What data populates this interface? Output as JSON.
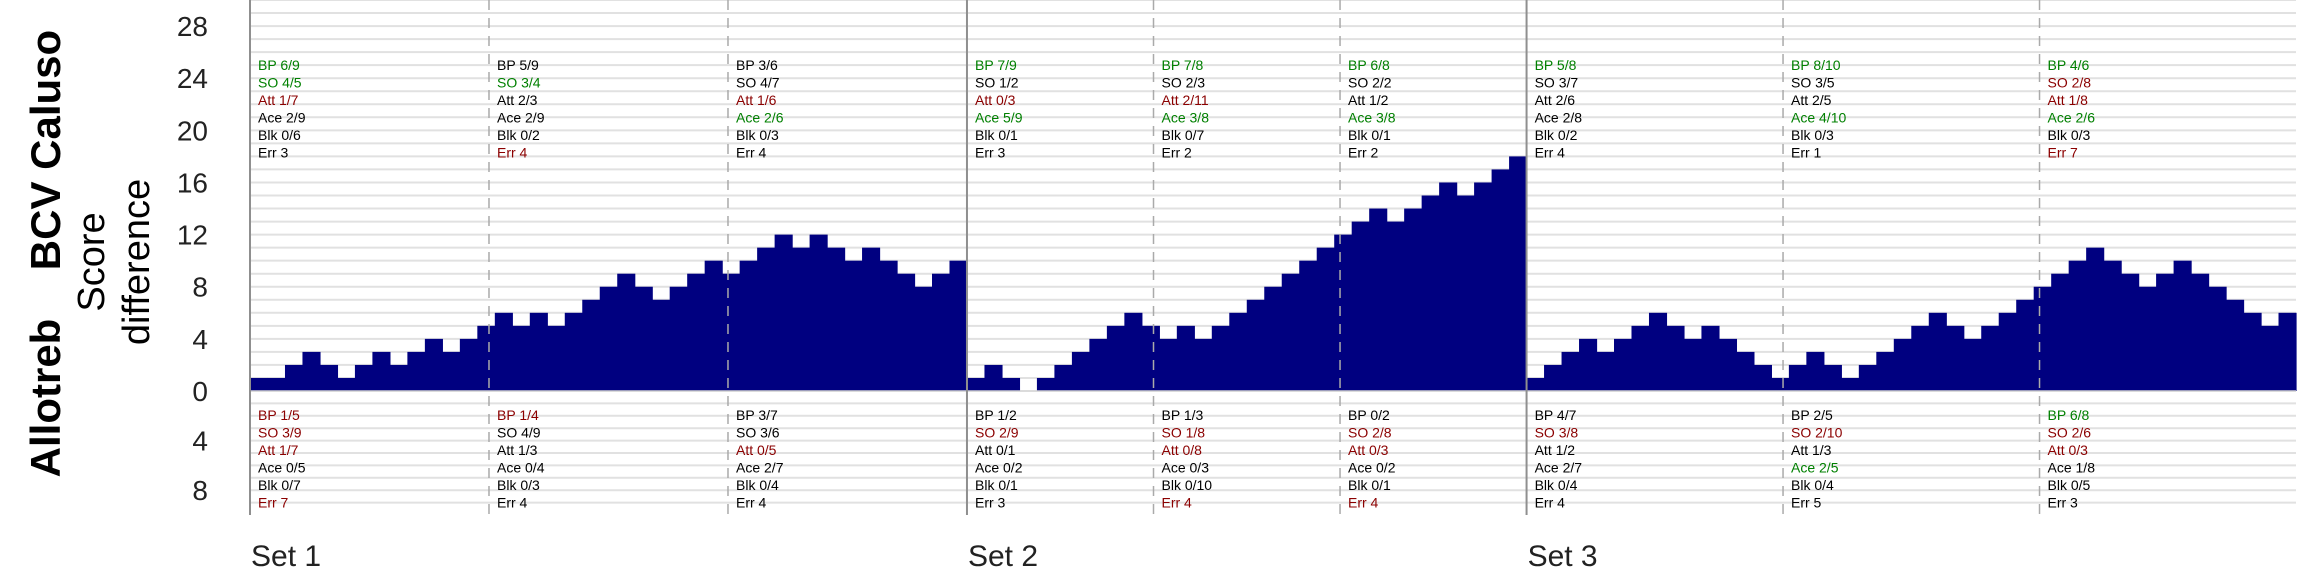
{
  "chart_data": {
    "type": "bar",
    "teams": {
      "top": "BCV Caluso",
      "bottom": "Allotreb"
    },
    "ylabel": [
      "Score",
      "difference"
    ],
    "top_ticks": [
      0,
      4,
      8,
      12,
      16,
      20,
      24,
      28
    ],
    "bottom_ticks": [
      0,
      4,
      8
    ],
    "ylim_top": 30,
    "ylim_bottom": 10,
    "bar_color": "#000080",
    "grid": true,
    "colors": {
      "good": "#008000",
      "bad": "#8b0000",
      "neutral": "#000000"
    },
    "sets": [
      {
        "label": "Set 1",
        "values": [
          1,
          1,
          2,
          3,
          2,
          1,
          2,
          3,
          2,
          3,
          4,
          3,
          4,
          5,
          6,
          5,
          6,
          5,
          6,
          7,
          8,
          9,
          8,
          7,
          8,
          9,
          10,
          9,
          10,
          11,
          12,
          11,
          12,
          11,
          10,
          11,
          10,
          9,
          8,
          9,
          10
        ]
      },
      {
        "label": "Set 2",
        "values": [
          1,
          2,
          1,
          0,
          1,
          2,
          3,
          4,
          5,
          6,
          5,
          4,
          5,
          4,
          5,
          6,
          7,
          8,
          9,
          10,
          11,
          12,
          13,
          14,
          13,
          14,
          15,
          16,
          15,
          16,
          17,
          18
        ]
      },
      {
        "label": "Set 3",
        "values": [
          1,
          2,
          3,
          4,
          3,
          4,
          5,
          6,
          5,
          4,
          5,
          4,
          3,
          2,
          1,
          2,
          3,
          2,
          1,
          2,
          3,
          4,
          5,
          6,
          5,
          4,
          5,
          6,
          7,
          8,
          9,
          10,
          11,
          10,
          9,
          8,
          9,
          10,
          9,
          8,
          7,
          6,
          5,
          6
        ]
      }
    ],
    "stats_top": [
      {
        "set": 0,
        "segment": 0,
        "lines": [
          {
            "t": "BP 6/9",
            "c": "good"
          },
          {
            "t": "SO 4/5",
            "c": "good"
          },
          {
            "t": "Att 1/7",
            "c": "bad"
          },
          {
            "t": "Ace 2/9",
            "c": "neutral"
          },
          {
            "t": "Blk 0/6",
            "c": "neutral"
          },
          {
            "t": "Err 3",
            "c": "neutral"
          }
        ]
      },
      {
        "set": 0,
        "segment": 1,
        "lines": [
          {
            "t": "BP 5/9",
            "c": "neutral"
          },
          {
            "t": "SO 3/4",
            "c": "good"
          },
          {
            "t": "Att 2/3",
            "c": "neutral"
          },
          {
            "t": "Ace 2/9",
            "c": "neutral"
          },
          {
            "t": "Blk 0/2",
            "c": "neutral"
          },
          {
            "t": "Err 4",
            "c": "bad"
          }
        ]
      },
      {
        "set": 0,
        "segment": 2,
        "lines": [
          {
            "t": "BP 3/6",
            "c": "neutral"
          },
          {
            "t": "SO 4/7",
            "c": "neutral"
          },
          {
            "t": "Att 1/6",
            "c": "bad"
          },
          {
            "t": "Ace 2/6",
            "c": "good"
          },
          {
            "t": "Blk 0/3",
            "c": "neutral"
          },
          {
            "t": "Err 4",
            "c": "neutral"
          }
        ]
      },
      {
        "set": 1,
        "segment": 0,
        "lines": [
          {
            "t": "BP 7/9",
            "c": "good"
          },
          {
            "t": "SO 1/2",
            "c": "neutral"
          },
          {
            "t": "Att 0/3",
            "c": "bad"
          },
          {
            "t": "Ace 5/9",
            "c": "good"
          },
          {
            "t": "Blk 0/1",
            "c": "neutral"
          },
          {
            "t": "Err 3",
            "c": "neutral"
          }
        ]
      },
      {
        "set": 1,
        "segment": 1,
        "lines": [
          {
            "t": "BP 7/8",
            "c": "good"
          },
          {
            "t": "SO 2/3",
            "c": "neutral"
          },
          {
            "t": "Att 2/11",
            "c": "bad"
          },
          {
            "t": "Ace 3/8",
            "c": "good"
          },
          {
            "t": "Blk 0/7",
            "c": "neutral"
          },
          {
            "t": "Err 2",
            "c": "neutral"
          }
        ]
      },
      {
        "set": 1,
        "segment": 2,
        "lines": [
          {
            "t": "BP 6/8",
            "c": "good"
          },
          {
            "t": "SO 2/2",
            "c": "neutral"
          },
          {
            "t": "Att 1/2",
            "c": "neutral"
          },
          {
            "t": "Ace 3/8",
            "c": "good"
          },
          {
            "t": "Blk 0/1",
            "c": "neutral"
          },
          {
            "t": "Err 2",
            "c": "neutral"
          }
        ]
      },
      {
        "set": 2,
        "segment": 0,
        "lines": [
          {
            "t": "BP 5/8",
            "c": "good"
          },
          {
            "t": "SO 3/7",
            "c": "neutral"
          },
          {
            "t": "Att 2/6",
            "c": "neutral"
          },
          {
            "t": "Ace 2/8",
            "c": "neutral"
          },
          {
            "t": "Blk 0/2",
            "c": "neutral"
          },
          {
            "t": "Err 4",
            "c": "neutral"
          }
        ]
      },
      {
        "set": 2,
        "segment": 1,
        "lines": [
          {
            "t": "BP 8/10",
            "c": "good"
          },
          {
            "t": "SO 3/5",
            "c": "neutral"
          },
          {
            "t": "Att 2/5",
            "c": "neutral"
          },
          {
            "t": "Ace 4/10",
            "c": "good"
          },
          {
            "t": "Blk 0/3",
            "c": "neutral"
          },
          {
            "t": "Err 1",
            "c": "neutral"
          }
        ]
      },
      {
        "set": 2,
        "segment": 2,
        "lines": [
          {
            "t": "BP 4/6",
            "c": "good"
          },
          {
            "t": "SO 2/8",
            "c": "bad"
          },
          {
            "t": "Att 1/8",
            "c": "bad"
          },
          {
            "t": "Ace 2/6",
            "c": "good"
          },
          {
            "t": "Blk 0/3",
            "c": "neutral"
          },
          {
            "t": "Err 7",
            "c": "bad"
          }
        ]
      }
    ],
    "stats_bottom": [
      {
        "set": 0,
        "segment": 0,
        "lines": [
          {
            "t": "BP 1/5",
            "c": "bad"
          },
          {
            "t": "SO 3/9",
            "c": "bad"
          },
          {
            "t": "Att 1/7",
            "c": "bad"
          },
          {
            "t": "Ace 0/5",
            "c": "neutral"
          },
          {
            "t": "Blk 0/7",
            "c": "neutral"
          },
          {
            "t": "Err 7",
            "c": "bad"
          }
        ]
      },
      {
        "set": 0,
        "segment": 1,
        "lines": [
          {
            "t": "BP 1/4",
            "c": "bad"
          },
          {
            "t": "SO 4/9",
            "c": "neutral"
          },
          {
            "t": "Att 1/3",
            "c": "neutral"
          },
          {
            "t": "Ace 0/4",
            "c": "neutral"
          },
          {
            "t": "Blk 0/3",
            "c": "neutral"
          },
          {
            "t": "Err 4",
            "c": "neutral"
          }
        ]
      },
      {
        "set": 0,
        "segment": 2,
        "lines": [
          {
            "t": "BP 3/7",
            "c": "neutral"
          },
          {
            "t": "SO 3/6",
            "c": "neutral"
          },
          {
            "t": "Att 0/5",
            "c": "bad"
          },
          {
            "t": "Ace 2/7",
            "c": "neutral"
          },
          {
            "t": "Blk 0/4",
            "c": "neutral"
          },
          {
            "t": "Err 4",
            "c": "neutral"
          }
        ]
      },
      {
        "set": 1,
        "segment": 0,
        "lines": [
          {
            "t": "BP 1/2",
            "c": "neutral"
          },
          {
            "t": "SO 2/9",
            "c": "bad"
          },
          {
            "t": "Att 0/1",
            "c": "neutral"
          },
          {
            "t": "Ace 0/2",
            "c": "neutral"
          },
          {
            "t": "Blk 0/1",
            "c": "neutral"
          },
          {
            "t": "Err 3",
            "c": "neutral"
          }
        ]
      },
      {
        "set": 1,
        "segment": 1,
        "lines": [
          {
            "t": "BP 1/3",
            "c": "neutral"
          },
          {
            "t": "SO 1/8",
            "c": "bad"
          },
          {
            "t": "Att 0/8",
            "c": "bad"
          },
          {
            "t": "Ace 0/3",
            "c": "neutral"
          },
          {
            "t": "Blk 0/10",
            "c": "neutral"
          },
          {
            "t": "Err 4",
            "c": "bad"
          }
        ]
      },
      {
        "set": 1,
        "segment": 2,
        "lines": [
          {
            "t": "BP 0/2",
            "c": "neutral"
          },
          {
            "t": "SO 2/8",
            "c": "bad"
          },
          {
            "t": "Att 0/3",
            "c": "bad"
          },
          {
            "t": "Ace 0/2",
            "c": "neutral"
          },
          {
            "t": "Blk 0/1",
            "c": "neutral"
          },
          {
            "t": "Err 4",
            "c": "bad"
          }
        ]
      },
      {
        "set": 2,
        "segment": 0,
        "lines": [
          {
            "t": "BP 4/7",
            "c": "neutral"
          },
          {
            "t": "SO 3/8",
            "c": "bad"
          },
          {
            "t": "Att 1/2",
            "c": "neutral"
          },
          {
            "t": "Ace 2/7",
            "c": "neutral"
          },
          {
            "t": "Blk 0/4",
            "c": "neutral"
          },
          {
            "t": "Err 4",
            "c": "neutral"
          }
        ]
      },
      {
        "set": 2,
        "segment": 1,
        "lines": [
          {
            "t": "BP 2/5",
            "c": "neutral"
          },
          {
            "t": "SO 2/10",
            "c": "bad"
          },
          {
            "t": "Att 1/3",
            "c": "neutral"
          },
          {
            "t": "Ace 2/5",
            "c": "good"
          },
          {
            "t": "Blk 0/4",
            "c": "neutral"
          },
          {
            "t": "Err 5",
            "c": "neutral"
          }
        ]
      },
      {
        "set": 2,
        "segment": 2,
        "lines": [
          {
            "t": "BP 6/8",
            "c": "good"
          },
          {
            "t": "SO 2/6",
            "c": "bad"
          },
          {
            "t": "Att 0/3",
            "c": "bad"
          },
          {
            "t": "Ace 1/8",
            "c": "neutral"
          },
          {
            "t": "Blk 0/5",
            "c": "neutral"
          },
          {
            "t": "Err 3",
            "c": "neutral"
          }
        ]
      }
    ]
  }
}
